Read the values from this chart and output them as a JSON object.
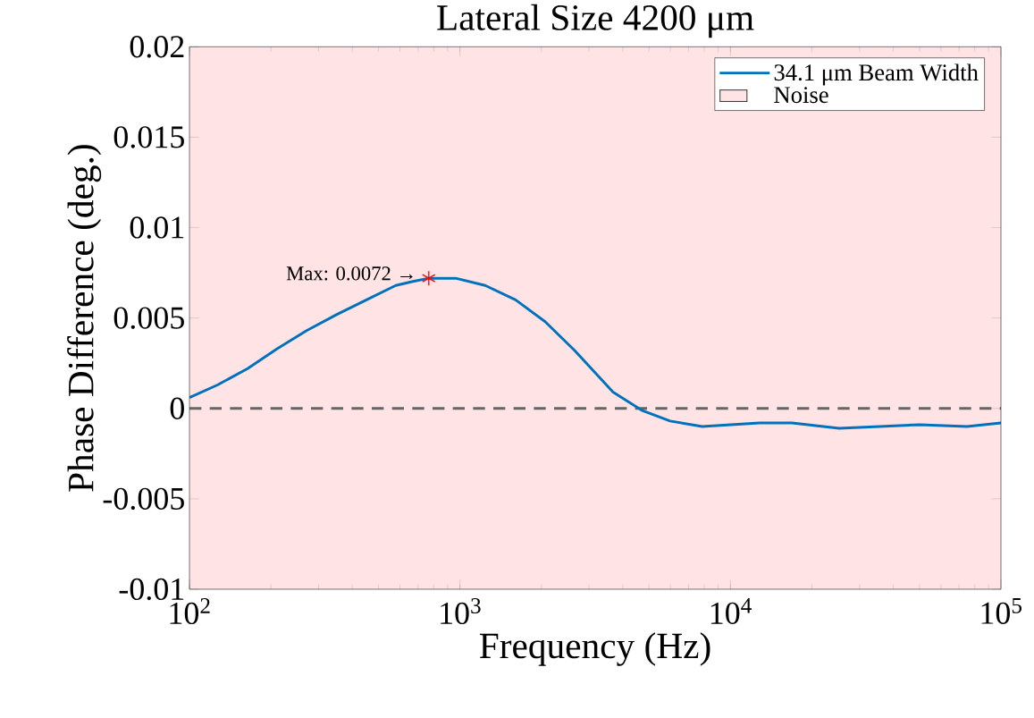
{
  "chart_data": {
    "type": "line",
    "title": "Lateral Size 4200 μm",
    "xlabel": "Frequency (Hz)",
    "ylabel": "Phase Difference (deg.)",
    "log": "x",
    "legend": "top right",
    "xlim": [
      100,
      100000
    ],
    "ylim": [
      -0.01,
      0.02
    ],
    "xticks": [
      {
        "value": 100,
        "label": "10$^{2}$"
      },
      {
        "value": 1000,
        "label": "10$^{3}$"
      },
      {
        "value": 10000,
        "label": "10$^{4}$"
      },
      {
        "value": 100000,
        "label": "10$^{5}$"
      }
    ],
    "yticks": [
      -0.01,
      -0.005,
      0,
      0.005,
      0.01,
      0.015,
      0.02
    ],
    "series": [
      {
        "name": "34.1 μm Beam Width",
        "color": "#0072bd",
        "line_style": "solid",
        "x": [
          100,
          127,
          164,
          211,
          271,
          351,
          451,
          579,
          659,
          767,
          963,
          1240,
          1606,
          2065,
          2655,
          3681,
          4697,
          5986,
          7870,
          12820,
          16870,
          25230,
          50000,
          74860,
          100000
        ],
        "values": [
          0.0006,
          0.0013,
          0.0022,
          0.0033,
          0.0043,
          0.0052,
          0.006,
          0.0068,
          0.007,
          0.0072,
          0.0072,
          0.0068,
          0.006,
          0.0048,
          0.0032,
          0.0009,
          -0.0001,
          -0.0007,
          -0.001,
          -0.0008,
          -0.0008,
          -0.0011,
          -0.0009,
          -0.001,
          -0.0008
        ]
      },
      {
        "type": "scatter",
        "marker": "cross",
        "color": "#ff0000",
        "x": [
          767
        ],
        "values": [
          0.0072
        ]
      }
    ],
    "bands": [
      {
        "axis": "y",
        "from": -0.01,
        "to": 0.02,
        "label": "Noise",
        "color": "#ffe3e5"
      }
    ],
    "ref_lines": [
      {
        "axis": "y",
        "value": 0,
        "color": "#666666",
        "line_style": "dashed"
      }
    ],
    "annotations": [
      {
        "text": "Max: 0.0072 →",
        "x": 767,
        "y": 0.0072
      }
    ]
  }
}
